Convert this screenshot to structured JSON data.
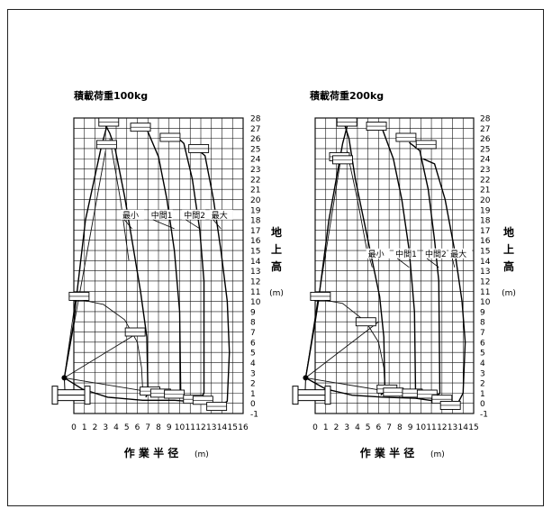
{
  "chart_data": [
    {
      "type": "line",
      "title": "積載荷重100kg",
      "xlabel": "作 業 半 径",
      "xunit": "(m)",
      "ylabel": "地上高",
      "yunit": "(m)",
      "xlim": [
        0,
        16
      ],
      "ylim": [
        -1,
        28
      ],
      "x_ticks": [
        "0",
        "1",
        "2",
        "3",
        "4",
        "5",
        "6",
        "7",
        "8",
        "9",
        "10",
        "11",
        "12",
        "13",
        "14",
        "15",
        "16"
      ],
      "y_ticks": [
        "-1",
        "0",
        "1",
        "2",
        "3",
        "4",
        "5",
        "6",
        "7",
        "8",
        "9",
        "10",
        "11",
        "12",
        "13",
        "14",
        "15",
        "16",
        "17",
        "18",
        "19",
        "20",
        "21",
        "22",
        "23",
        "24",
        "25",
        "26",
        "27",
        "28"
      ],
      "grid": true,
      "series": [
        {
          "name": "最小",
          "points": [
            [
              3.0,
              27.3
            ],
            [
              3.4,
              26.5
            ],
            [
              3.9,
              25.0
            ],
            [
              4.8,
              20.3
            ],
            [
              5.5,
              16.0
            ],
            [
              6.3,
              11.0
            ],
            [
              6.9,
              6.5
            ],
            [
              7.0,
              1.0
            ],
            [
              6.8,
              0.6
            ]
          ]
        },
        {
          "name": "中間1",
          "points": [
            [
              5.9,
              27.2
            ],
            [
              6.9,
              26.9
            ],
            [
              8.0,
              24.2
            ],
            [
              8.8,
              20.0
            ],
            [
              9.5,
              15.0
            ],
            [
              10.0,
              9.0
            ],
            [
              10.1,
              1.0
            ],
            [
              9.6,
              0.5
            ]
          ]
        },
        {
          "name": "中間2",
          "points": [
            [
              9.4,
              26.5
            ],
            [
              10.4,
              25.5
            ],
            [
              11.2,
              22.0
            ],
            [
              11.9,
              17.0
            ],
            [
              12.3,
              12.0
            ],
            [
              12.3,
              1.0
            ],
            [
              12.0,
              0.5
            ]
          ]
        },
        {
          "name": "最大",
          "points": [
            [
              11.6,
              25.0
            ],
            [
              12.4,
              24.3
            ],
            [
              13.2,
              20.0
            ],
            [
              13.9,
              15.0
            ],
            [
              14.5,
              10.0
            ],
            [
              14.7,
              5.0
            ],
            [
              14.5,
              0.2
            ],
            [
              13.9,
              -0.2
            ]
          ]
        },
        {
          "name": "",
          "points": [
            [
              -0.9,
              2.5
            ],
            [
              0,
              8.0
            ],
            [
              0.2,
              10.0
            ],
            [
              1.1,
              18.0
            ],
            [
              2.6,
              25.2
            ],
            [
              3.2,
              27.5
            ]
          ]
        },
        {
          "name": "",
          "points": [
            [
              -0.9,
              2.5
            ],
            [
              0.8,
              1.4
            ],
            [
              3.2,
              0.6
            ],
            [
              6.5,
              0.3
            ],
            [
              9.5,
              0.3
            ],
            [
              12.0,
              0.1
            ],
            [
              14.0,
              -0.5
            ]
          ]
        }
      ],
      "construction_lines": [
        {
          "points": [
            [
              -0.9,
              2.5
            ],
            [
              6.2,
              7.0
            ]
          ]
        },
        {
          "points": [
            [
              -0.9,
              2.5
            ],
            [
              6.7,
              1.2
            ]
          ]
        },
        {
          "points": [
            [
              -0.9,
              2.5
            ],
            [
              0.2,
              10.5
            ]
          ]
        },
        {
          "points": [
            [
              0.5,
              10.2
            ],
            [
              2.8,
              9.7
            ],
            [
              4.8,
              8.2
            ],
            [
              6.0,
              6.0
            ],
            [
              6.4,
              3.5
            ],
            [
              6.5,
              1.5
            ]
          ]
        },
        {
          "points": [
            [
              3.4,
              26.0
            ],
            [
              4.4,
              20.0
            ],
            [
              5.2,
              14.0
            ]
          ]
        },
        {
          "points": [
            [
              -0.9,
              2.5
            ],
            [
              3.0,
              24.8
            ]
          ]
        }
      ],
      "platform_marks": [
        [
          3.3,
          27.6
        ],
        [
          3.1,
          25.4
        ],
        [
          6.3,
          27.1
        ],
        [
          9.1,
          26.1
        ],
        [
          11.8,
          25.0
        ],
        [
          0.5,
          10.5
        ],
        [
          5.8,
          7.0
        ],
        [
          7.2,
          1.2
        ],
        [
          8.2,
          1.0
        ],
        [
          9.5,
          0.9
        ],
        [
          11.3,
          0.4
        ],
        [
          12.2,
          0.3
        ],
        [
          13.5,
          -0.3
        ]
      ]
    },
    {
      "type": "line",
      "title": "積載荷重200kg",
      "xlabel": "作 業 半 径",
      "xunit": "(m)",
      "ylabel": "地上高",
      "yunit": "(m)",
      "xlim": [
        0,
        15
      ],
      "ylim": [
        -1,
        28
      ],
      "x_ticks": [
        "0",
        "1",
        "2",
        "3",
        "4",
        "5",
        "6",
        "7",
        "8",
        "9",
        "10",
        "11",
        "12",
        "13",
        "14",
        "15"
      ],
      "y_ticks": [
        "-1",
        "0",
        "1",
        "2",
        "3",
        "4",
        "5",
        "6",
        "7",
        "8",
        "9",
        "10",
        "11",
        "12",
        "13",
        "14",
        "15",
        "16",
        "17",
        "18",
        "19",
        "20",
        "21",
        "22",
        "23",
        "24",
        "25",
        "26",
        "27",
        "28"
      ],
      "grid": true,
      "series": [
        {
          "name": "最小",
          "points": [
            [
              2.8,
              27.3
            ],
            [
              3.2,
              26.0
            ],
            [
              3.8,
              22.0
            ],
            [
              4.6,
              18.0
            ],
            [
              5.4,
              14.0
            ],
            [
              6.1,
              10.5
            ],
            [
              6.5,
              6.5
            ],
            [
              6.6,
              1.2
            ],
            [
              6.2,
              0.8
            ]
          ]
        },
        {
          "name": "中間1",
          "points": [
            [
              5.3,
              27.2
            ],
            [
              6.4,
              26.8
            ],
            [
              7.4,
              24.0
            ],
            [
              8.2,
              20.0
            ],
            [
              8.9,
              15.0
            ],
            [
              9.4,
              9.0
            ],
            [
              9.5,
              1.2
            ],
            [
              9.0,
              0.6
            ]
          ]
        },
        {
          "name": "中間2",
          "points": [
            [
              8.9,
              25.6
            ],
            [
              9.9,
              24.8
            ],
            [
              10.7,
              21.0
            ],
            [
              11.3,
              16.0
            ],
            [
              11.7,
              12.0
            ],
            [
              11.8,
              1.0
            ],
            [
              11.4,
              0.6
            ]
          ]
        },
        {
          "name": "最大",
          "points": [
            [
              10.2,
              24.0
            ],
            [
              11.3,
              23.5
            ],
            [
              12.3,
              20.0
            ],
            [
              13.2,
              15.0
            ],
            [
              13.9,
              10.0
            ],
            [
              14.2,
              6.0
            ],
            [
              14.0,
              1.0
            ],
            [
              13.6,
              0.2
            ]
          ]
        },
        {
          "name": "",
          "points": [
            [
              -0.9,
              2.5
            ],
            [
              0,
              8.0
            ],
            [
              0.3,
              10.0
            ],
            [
              1.3,
              18.0
            ],
            [
              2.6,
              25.5
            ],
            [
              3.1,
              27.5
            ]
          ]
        },
        {
          "name": "",
          "points": [
            [
              -0.9,
              2.5
            ],
            [
              1.0,
              1.4
            ],
            [
              3.5,
              0.8
            ],
            [
              6.5,
              0.6
            ],
            [
              9.5,
              0.5
            ],
            [
              11.5,
              0.2
            ],
            [
              13.2,
              -0.2
            ]
          ]
        }
      ],
      "construction_lines": [
        {
          "points": [
            [
              -0.9,
              2.5
            ],
            [
              6.0,
              8.0
            ]
          ]
        },
        {
          "points": [
            [
              -0.9,
              2.5
            ],
            [
              6.7,
              1.2
            ]
          ]
        },
        {
          "points": [
            [
              -0.9,
              2.5
            ],
            [
              0.3,
              10.5
            ]
          ]
        },
        {
          "points": [
            [
              0.5,
              10.2
            ],
            [
              2.6,
              9.8
            ],
            [
              4.8,
              8.0
            ],
            [
              6.0,
              6.0
            ],
            [
              6.5,
              3.5
            ],
            [
              6.6,
              1.5
            ]
          ]
        },
        {
          "points": [
            [
              3.0,
              24.8
            ],
            [
              4.0,
              20.0
            ],
            [
              4.9,
              15.0
            ]
          ]
        },
        {
          "points": [
            [
              -0.9,
              2.5
            ],
            [
              2.4,
              23.8
            ]
          ]
        }
      ],
      "platform_marks": [
        [
          3.0,
          27.6
        ],
        [
          2.3,
          24.2
        ],
        [
          2.6,
          23.9
        ],
        [
          5.8,
          27.2
        ],
        [
          8.6,
          26.1
        ],
        [
          10.5,
          25.4
        ],
        [
          0.5,
          10.5
        ],
        [
          4.8,
          8.0
        ],
        [
          6.8,
          1.4
        ],
        [
          7.4,
          1.1
        ],
        [
          9.2,
          1.0
        ],
        [
          10.6,
          0.9
        ],
        [
          12.0,
          0.4
        ],
        [
          12.8,
          -0.2
        ]
      ]
    }
  ]
}
